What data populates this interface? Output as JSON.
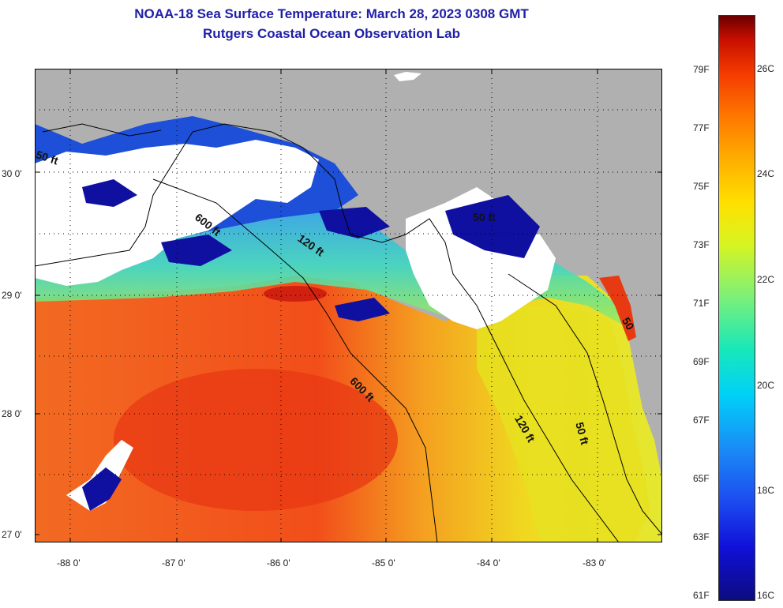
{
  "title": {
    "line1": "NOAA-18 Sea Surface Temperature:  March 28, 2023 0308 GMT",
    "line2": "Rutgers Coastal Ocean Observation Lab"
  },
  "map": {
    "lon_ticks": [
      "-88 0'",
      "-87 0'",
      "-86 0'",
      "-85 0'",
      "-84 0'",
      "-83 0'"
    ],
    "lat_ticks": [
      "30 0'",
      "29 0'",
      "28 0'",
      "27 0'"
    ],
    "contour_labels": [
      "50 ft",
      "600 ft",
      "120 ft",
      "50 ft",
      "600 ft",
      "120 ft",
      "50 ft",
      "50"
    ],
    "colors": {
      "land": "#b0b0b0",
      "cloud": "#ffffff",
      "warm_gulf": "#f2501c",
      "cool_shelf": "#e8e020"
    }
  },
  "colorbar": {
    "fahrenheit": [
      "79F",
      "77F",
      "75F",
      "73F",
      "71F",
      "69F",
      "67F",
      "65F",
      "63F",
      "61F"
    ],
    "celsius": [
      "26C",
      "24C",
      "22C",
      "20C",
      "18C",
      "16C"
    ]
  }
}
